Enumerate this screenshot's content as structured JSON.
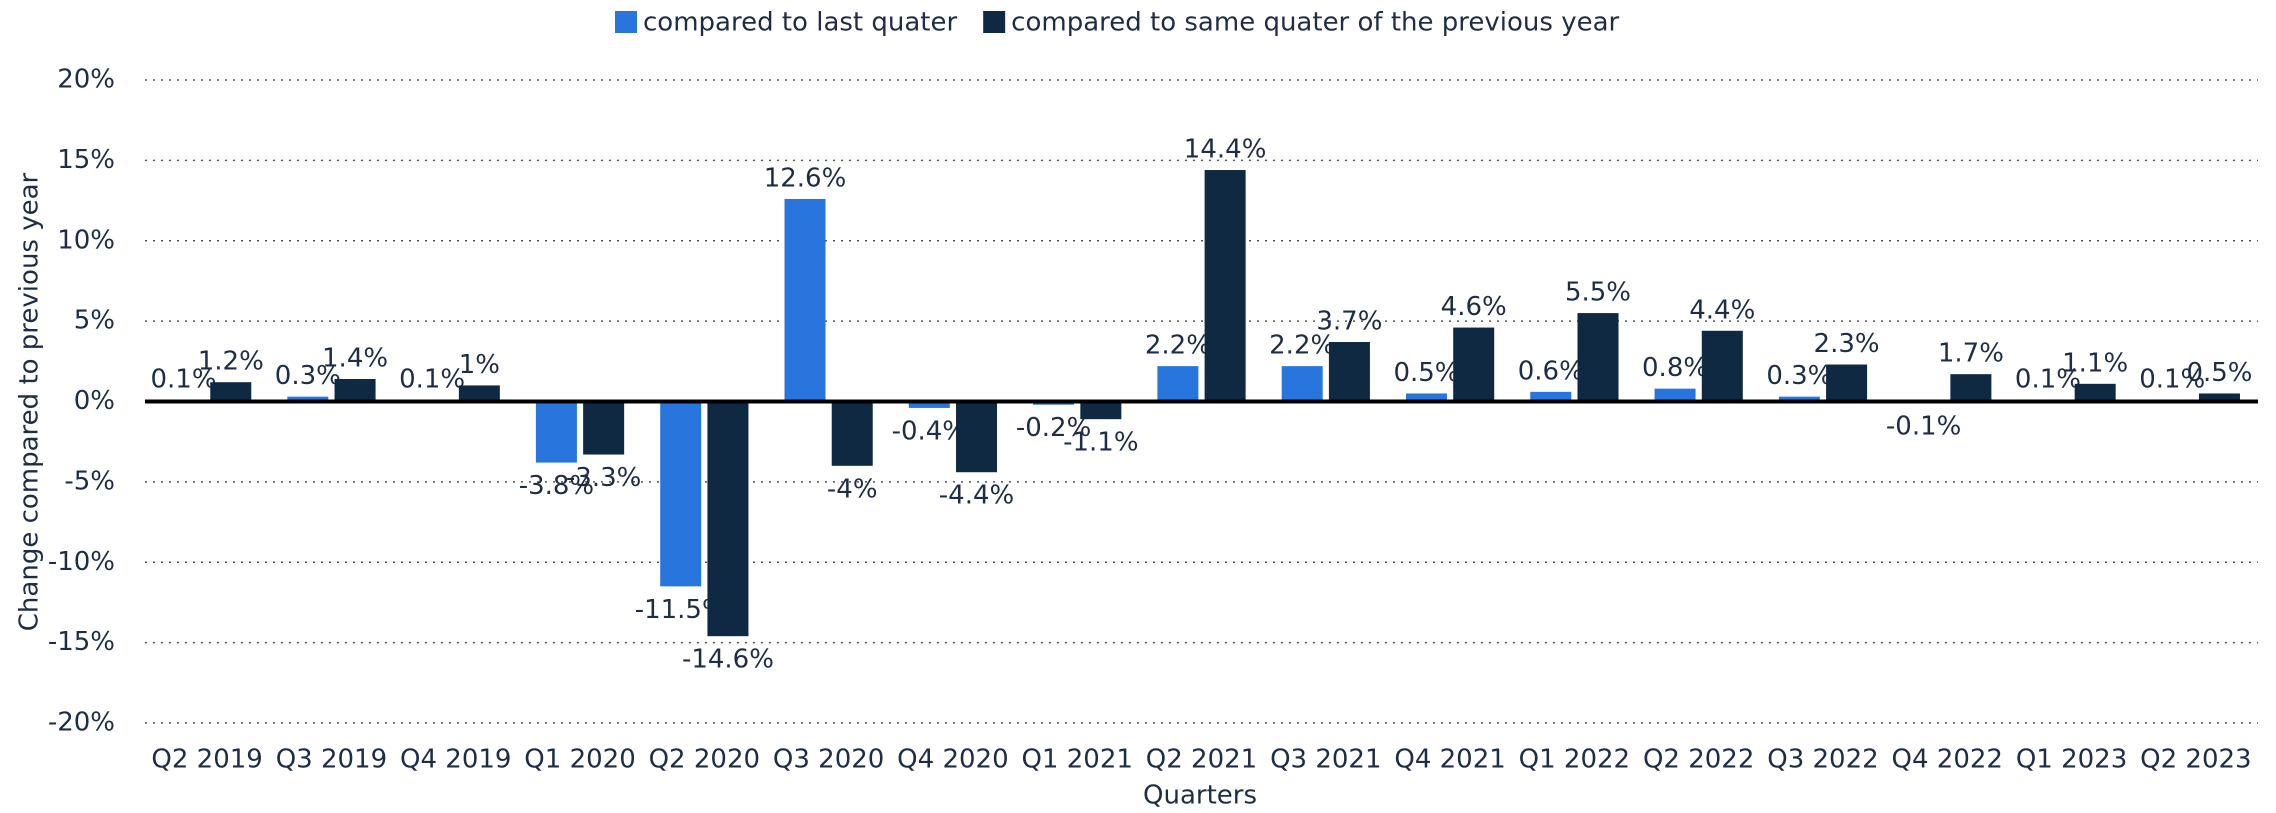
{
  "chart_data": {
    "type": "bar",
    "x_label": "Quarters",
    "y_label": "Change compared to previous year",
    "categories": [
      "Q2 2019",
      "Q3 2019",
      "Q4 2019",
      "Q1 2020",
      "Q2 2020",
      "Q3 2020",
      "Q4 2020",
      "Q1 2021",
      "Q2 2021",
      "Q3 2021",
      "Q4 2021",
      "Q1 2022",
      "Q2 2022",
      "Q3 2022",
      "Q4 2022",
      "Q1 2023",
      "Q2 2023"
    ],
    "series": [
      {
        "name": "compared to last quater",
        "color": "#2876dd",
        "values": [
          0.1,
          0.3,
          0.1,
          -3.8,
          -11.5,
          12.6,
          -0.4,
          -0.2,
          2.2,
          2.2,
          0.5,
          0.6,
          0.8,
          0.3,
          -0.1,
          0.1,
          0.1
        ],
        "value_labels": [
          "0.1%",
          "0.3%",
          "0.1%",
          "-3.8%",
          "-11.5%",
          "12.6%",
          "-0.4%",
          "-0.2%",
          "2.2%",
          "2.2%",
          "0.5%",
          "0.6%",
          "0.8%",
          "0.3%",
          "-0.1%",
          "0.1%",
          "0.1%"
        ]
      },
      {
        "name": "compared to same quater of the previous year",
        "color": "#0f2942",
        "values": [
          1.2,
          1.4,
          1,
          -3.3,
          -14.6,
          -4,
          -4.4,
          -1.1,
          14.4,
          3.7,
          4.6,
          5.5,
          4.4,
          2.3,
          1.7,
          1.1,
          0.5
        ],
        "value_labels": [
          "1.2%",
          "1.4%",
          "1%",
          "-3.3%",
          "-14.6%",
          "-4%",
          "-4.4%",
          "-1.1%",
          "14.4%",
          "3.7%",
          "4.6%",
          "5.5%",
          "4.4%",
          "2.3%",
          "1.7%",
          "1.1%",
          "0.5%"
        ]
      }
    ],
    "ylim": [
      -20,
      20
    ],
    "yticks": [
      {
        "value": -20,
        "label": "-20%"
      },
      {
        "value": -15,
        "label": "-15%"
      },
      {
        "value": -10,
        "label": "-10%"
      },
      {
        "value": -5,
        "label": "-5%"
      },
      {
        "value": 0,
        "label": "0%"
      },
      {
        "value": 5,
        "label": "5%"
      },
      {
        "value": 10,
        "label": "10%"
      },
      {
        "value": 15,
        "label": "15%"
      },
      {
        "value": 20,
        "label": "20%"
      }
    ],
    "grid": true,
    "legend": "top"
  }
}
